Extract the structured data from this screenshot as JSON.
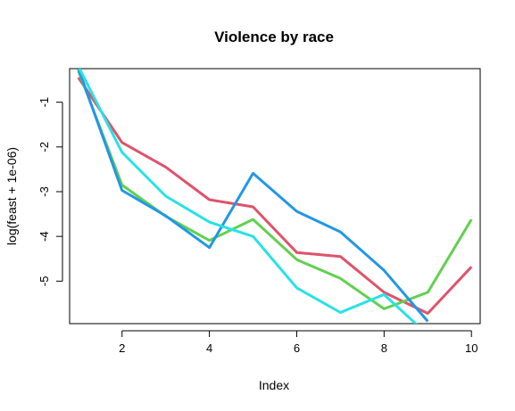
{
  "chart_data": {
    "type": "line",
    "title": "Violence by race",
    "xlabel": "Index",
    "ylabel": "log(feast + 1e-06)",
    "xlim": [
      0.8,
      10.2
    ],
    "ylim": [
      -5.95,
      -0.25
    ],
    "xticks": [
      2,
      4,
      6,
      8,
      10
    ],
    "yticks": [
      -1,
      -2,
      -3,
      -4,
      -5
    ],
    "grid": false,
    "legend": "none",
    "x": [
      1,
      2,
      3,
      4,
      5,
      6,
      7,
      8,
      9,
      10
    ],
    "series": [
      {
        "color": "#DF536B",
        "values": [
          -0.45,
          -1.9,
          -2.45,
          -3.18,
          -3.34,
          -4.36,
          -4.45,
          -5.25,
          -5.72,
          -4.68
        ]
      },
      {
        "color": "#61D04F",
        "values": [
          -0.3,
          -2.85,
          -3.55,
          -4.09,
          -3.62,
          -4.52,
          -4.94,
          -5.62,
          -5.25,
          -3.62
        ]
      },
      {
        "color": "#2297E6",
        "values": [
          -0.25,
          -2.97,
          -3.54,
          -4.25,
          -2.59,
          -3.44,
          -3.9,
          -4.76,
          -5.9,
          null
        ]
      },
      {
        "color": "#28E2E5",
        "values": [
          -0.2,
          -2.12,
          -3.1,
          -3.68,
          -4.0,
          -5.15,
          -5.7,
          -5.3,
          -6.2,
          null
        ]
      }
    ]
  }
}
